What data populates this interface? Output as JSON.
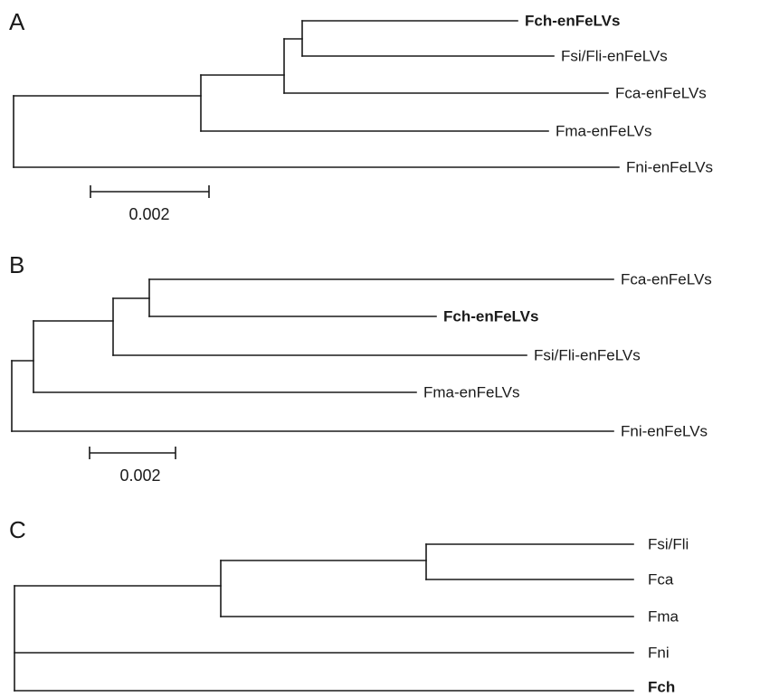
{
  "panels": [
    {
      "label": "A",
      "leaves": [
        {
          "text": "Fch-enFeLVs",
          "bold": true
        },
        {
          "text": "Fsi/Fli-enFeLVs",
          "bold": false
        },
        {
          "text": "Fca-enFeLVs",
          "bold": false
        },
        {
          "text": "Fma-enFeLVs",
          "bold": false
        },
        {
          "text": "Fni-enFeLVs",
          "bold": false
        }
      ],
      "scale_label": "0.002"
    },
    {
      "label": "B",
      "leaves": [
        {
          "text": "Fca-enFeLVs",
          "bold": false
        },
        {
          "text": "Fch-enFeLVs",
          "bold": true
        },
        {
          "text": "Fsi/Fli-enFeLVs",
          "bold": false
        },
        {
          "text": "Fma-enFeLVs",
          "bold": false
        },
        {
          "text": "Fni-enFeLVs",
          "bold": false
        }
      ],
      "scale_label": "0.002"
    },
    {
      "label": "C",
      "leaves": [
        {
          "text": "Fsi/Fli",
          "bold": false
        },
        {
          "text": "Fca",
          "bold": false
        },
        {
          "text": "Fma",
          "bold": false
        },
        {
          "text": "Fni",
          "bold": false
        },
        {
          "text": "Fch",
          "bold": true
        }
      ]
    }
  ]
}
